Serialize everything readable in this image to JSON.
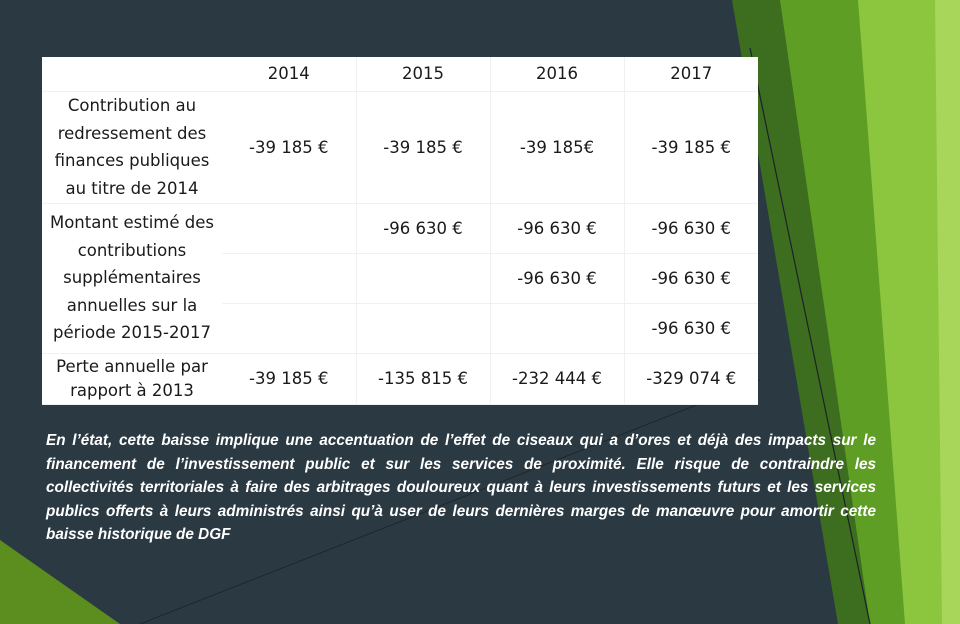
{
  "table": {
    "years": [
      "2014",
      "2015",
      "2016",
      "2017"
    ],
    "row_contribution": {
      "label": "Contribution au redressement des finances publiques au titre de 2014",
      "values": [
        "-39 185 €",
        "-39 185 €",
        "-39 185€",
        "-39 185 €"
      ]
    },
    "row_estimated": {
      "label": "Montant estimé des contributions supplémentaires annuelles sur la période 2015-2017",
      "line1": [
        "-96 630 €",
        "-96 630 €",
        "-96 630 €"
      ],
      "line2": [
        "-96 630 €",
        "-96 630 €"
      ],
      "line3": [
        "-96 630 €"
      ]
    },
    "row_loss": {
      "label": "Perte annuelle par rapport à 2013",
      "values": [
        "-39 185 €",
        "-135 815 €",
        "-232 444 €",
        "-329 074 €"
      ]
    }
  },
  "paragraph": "En l’état, cette baisse implique une accentuation de l’effet de ciseaux qui a d’ores et déjà des impacts sur le financement de l’investissement public et sur les services de proximité. Elle risque de contraindre les collectivités territoriales à faire des arbitrages douloureux quant à leurs investissements futurs et les services publics offerts à leurs administrés ainsi qu’à user de leurs dernières marges de manœuvre pour amortir cette baisse historique de DGF"
}
